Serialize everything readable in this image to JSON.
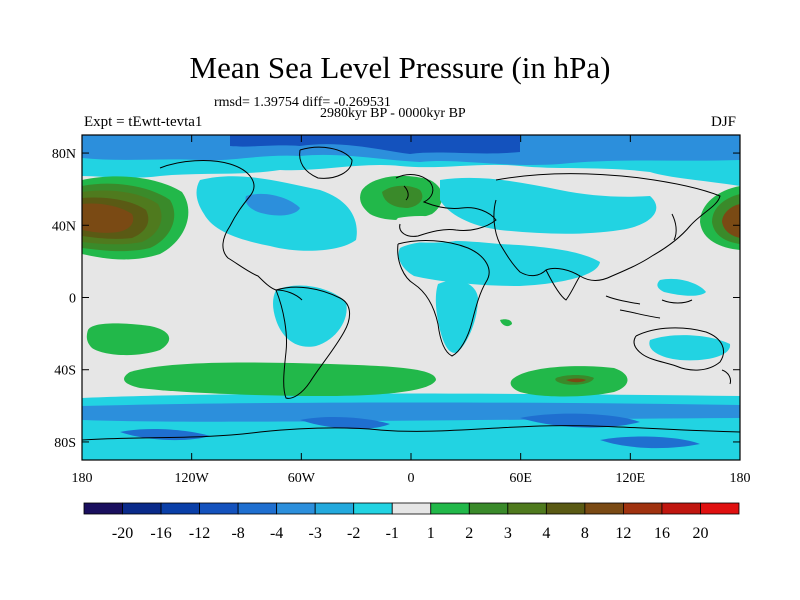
{
  "title": "Mean Sea Level Pressure (in hPa)",
  "subtitle_stats": "rmsd= 1.39754 diff= -0.269531",
  "subtitle_period": "2980kyr BP - 0000kyr BP",
  "experiment": "Expt = tEwtt-tevta1",
  "season": "DJF",
  "map": {
    "projection": "cylindrical equidistant",
    "lon_range": [
      -180,
      180
    ],
    "lat_range": [
      -90,
      90
    ],
    "lat_ticks": [
      {
        "value": 80,
        "label": "80N"
      },
      {
        "value": 40,
        "label": "40N"
      },
      {
        "value": 0,
        "label": "0"
      },
      {
        "value": -40,
        "label": "40S"
      },
      {
        "value": -80,
        "label": "80S"
      }
    ],
    "lon_ticks": [
      {
        "value": -180,
        "label": "180"
      },
      {
        "value": -120,
        "label": "120W"
      },
      {
        "value": -60,
        "label": "60W"
      },
      {
        "value": 0,
        "label": "0"
      },
      {
        "value": 60,
        "label": "60E"
      },
      {
        "value": 120,
        "label": "120E"
      },
      {
        "value": 180,
        "label": "180"
      }
    ],
    "background_color": "#e6e6e6"
  },
  "colorbar": {
    "colors": [
      "#1a0f5e",
      "#0a2a8a",
      "#0a3fa8",
      "#1452bd",
      "#1f6fd0",
      "#2c8fdc",
      "#23a9dd",
      "#22d3e2",
      "#e6e6e6",
      "#22b84a",
      "#3a8a2a",
      "#4f7a1e",
      "#5a5a14",
      "#7a4a14",
      "#a0320f",
      "#c0160f",
      "#e01010"
    ],
    "labels": [
      "-20",
      "-16",
      "-12",
      "-8",
      "-4",
      "-3",
      "-2",
      "-1",
      "1",
      "2",
      "3",
      "4",
      "8",
      "12",
      "16",
      "20"
    ]
  }
}
